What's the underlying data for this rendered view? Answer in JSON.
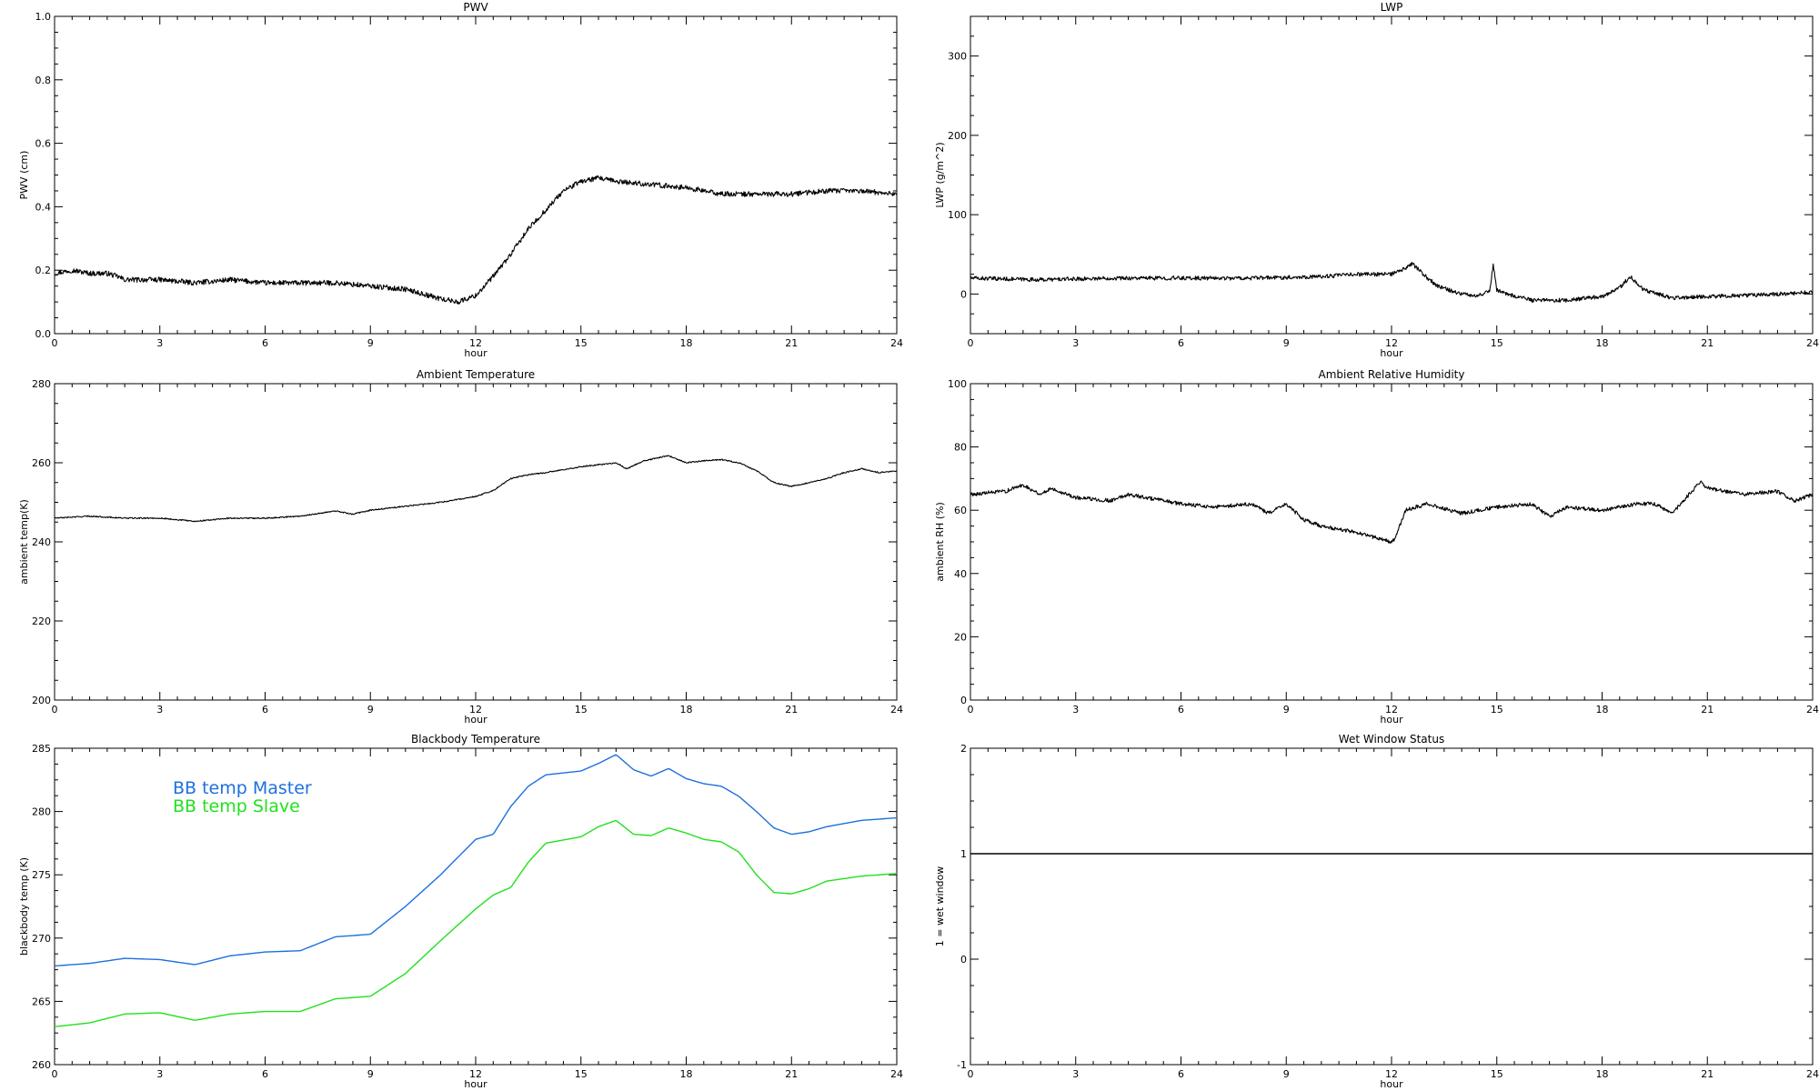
{
  "chart_data": [
    {
      "id": "pwv",
      "type": "line",
      "title": "PWV",
      "xlabel": "hour",
      "ylabel": "PWV (cm)",
      "xlim": [
        0,
        24
      ],
      "ylim": [
        0,
        1
      ],
      "xticks": [
        0,
        3,
        6,
        9,
        12,
        15,
        18,
        21,
        24
      ],
      "xtick_labels": [
        "0",
        "3",
        "6",
        "9",
        "12",
        "15",
        "18",
        "21",
        "24"
      ],
      "yticks": [
        0,
        0.2,
        0.4,
        0.6,
        0.8,
        1
      ],
      "ytick_labels": [
        "0.0",
        "0.2",
        "0.4",
        "0.6",
        "0.8",
        "1.0"
      ],
      "series": [
        {
          "color": "#000000",
          "noise": 0.008,
          "x": [
            0,
            0.5,
            1,
            1.5,
            1.8,
            2,
            3,
            4,
            5,
            6,
            7,
            8,
            9,
            10,
            11,
            11.5,
            12,
            12.5,
            13,
            13.5,
            14,
            14.5,
            15,
            15.5,
            16,
            17,
            18,
            19,
            20,
            21,
            22,
            23,
            24
          ],
          "y": [
            0.19,
            0.2,
            0.19,
            0.19,
            0.18,
            0.17,
            0.17,
            0.16,
            0.17,
            0.16,
            0.16,
            0.16,
            0.15,
            0.14,
            0.11,
            0.1,
            0.12,
            0.18,
            0.25,
            0.33,
            0.39,
            0.45,
            0.48,
            0.49,
            0.48,
            0.47,
            0.46,
            0.44,
            0.44,
            0.44,
            0.45,
            0.45,
            0.44
          ]
        }
      ]
    },
    {
      "id": "lwp",
      "type": "line",
      "title": "LWP",
      "xlabel": "hour",
      "ylabel": "LWP (g/m^2)",
      "xlim": [
        0,
        24
      ],
      "ylim": [
        -50,
        350
      ],
      "xticks": [
        0,
        3,
        6,
        9,
        12,
        15,
        18,
        21,
        24
      ],
      "xtick_labels": [
        "0",
        "3",
        "6",
        "9",
        "12",
        "15",
        "18",
        "21",
        "24"
      ],
      "yticks": [
        0,
        100,
        200,
        300
      ],
      "ytick_labels": [
        "0",
        "100",
        "200",
        "300"
      ],
      "series": [
        {
          "color": "#000000",
          "noise": 2.5,
          "x": [
            0,
            2,
            4,
            6,
            8,
            10,
            11,
            12,
            12.3,
            12.6,
            12.9,
            13.3,
            14,
            14.5,
            14.8,
            14.9,
            15.0,
            15.3,
            16,
            17,
            18,
            18.5,
            18.8,
            19.2,
            20,
            21,
            22,
            23,
            24
          ],
          "y": [
            20,
            18,
            20,
            20,
            20,
            22,
            25,
            25,
            30,
            38,
            25,
            10,
            0,
            -2,
            5,
            38,
            5,
            0,
            -8,
            -8,
            -3,
            8,
            22,
            5,
            -5,
            -3,
            -2,
            0,
            2
          ]
        }
      ]
    },
    {
      "id": "ambient-temperature",
      "type": "line",
      "title": "Ambient Temperature",
      "xlabel": "hour",
      "ylabel": "ambient temp(K)",
      "xlim": [
        0,
        24
      ],
      "ylim": [
        200,
        280
      ],
      "xticks": [
        0,
        3,
        6,
        9,
        12,
        15,
        18,
        21,
        24
      ],
      "xtick_labels": [
        "0",
        "3",
        "6",
        "9",
        "12",
        "15",
        "18",
        "21",
        "24"
      ],
      "yticks": [
        200,
        220,
        240,
        260,
        280
      ],
      "ytick_labels": [
        "200",
        "220",
        "240",
        "260",
        "280"
      ],
      "series": [
        {
          "color": "#000000",
          "noise": 0.15,
          "x": [
            0,
            1,
            2,
            3,
            4,
            5,
            6,
            7,
            8,
            8.5,
            9,
            10,
            11,
            12,
            12.5,
            13,
            13.5,
            14,
            15,
            16,
            16.3,
            16.8,
            17.5,
            18,
            18.5,
            19,
            19.5,
            20,
            20.5,
            21,
            21.5,
            22,
            22.5,
            23,
            23.5,
            24
          ],
          "y": [
            246,
            246.5,
            246,
            246,
            245.2,
            246,
            246,
            246.5,
            247.8,
            247,
            248,
            249,
            250,
            251.5,
            253,
            256,
            257,
            257.5,
            259,
            260,
            258.5,
            260.5,
            261.8,
            260,
            260.5,
            260.8,
            260,
            258,
            255,
            254,
            255,
            256,
            257.5,
            258.5,
            257.5,
            258
          ]
        }
      ]
    },
    {
      "id": "ambient-relative-humidity",
      "type": "line",
      "title": "Ambient Relative Humidity",
      "xlabel": "hour",
      "ylabel": "ambient RH (%)",
      "xlim": [
        0,
        24
      ],
      "ylim": [
        0,
        100
      ],
      "xticks": [
        0,
        3,
        6,
        9,
        12,
        15,
        18,
        21,
        24
      ],
      "xtick_labels": [
        "0",
        "3",
        "6",
        "9",
        "12",
        "15",
        "18",
        "21",
        "24"
      ],
      "yticks": [
        0,
        20,
        40,
        60,
        80,
        100
      ],
      "ytick_labels": [
        "0",
        "20",
        "40",
        "60",
        "80",
        "100"
      ],
      "series": [
        {
          "color": "#000000",
          "noise": 0.6,
          "x": [
            0,
            1,
            1.5,
            2,
            2.3,
            3,
            4,
            4.5,
            5,
            6,
            7,
            8,
            8.5,
            9,
            9.5,
            10,
            11,
            12,
            12.1,
            12.4,
            13,
            14,
            15,
            16,
            16.5,
            17,
            18,
            19,
            19.5,
            20,
            20.4,
            20.8,
            21,
            22,
            23,
            23.5,
            24
          ],
          "y": [
            65,
            66,
            68,
            65,
            67,
            64,
            63,
            65,
            64,
            62,
            61,
            62,
            59,
            62,
            57,
            55,
            53,
            50,
            51,
            60,
            62,
            59,
            61,
            62,
            58,
            61,
            60,
            62,
            62,
            59,
            64,
            69,
            67,
            65,
            66,
            63,
            65
          ]
        }
      ]
    },
    {
      "id": "blackbody-temperature",
      "type": "line",
      "title": "Blackbody Temperature",
      "xlabel": "hour",
      "ylabel": "blackbody temp (K)",
      "xlim": [
        0,
        24
      ],
      "ylim": [
        260,
        285
      ],
      "xticks": [
        0,
        3,
        6,
        9,
        12,
        15,
        18,
        21,
        24
      ],
      "xtick_labels": [
        "0",
        "3",
        "6",
        "9",
        "12",
        "15",
        "18",
        "21",
        "24"
      ],
      "yticks": [
        260,
        265,
        270,
        275,
        280,
        285
      ],
      "ytick_labels": [
        "260",
        "265",
        "270",
        "275",
        "280",
        "285"
      ],
      "legend": [
        "BB temp Master",
        "BB temp Slave"
      ],
      "series": [
        {
          "name": "BB temp Master",
          "color": "#1e6fe0",
          "noise": 0,
          "x": [
            0,
            1,
            2,
            3,
            4,
            5,
            6,
            7,
            8,
            9,
            10,
            11,
            12,
            12.5,
            13,
            13.5,
            14,
            15,
            15.5,
            16,
            16.5,
            17,
            17.5,
            18,
            18.5,
            19,
            19.5,
            20,
            20.5,
            21,
            21.5,
            22,
            23,
            24
          ],
          "y": [
            267.8,
            268,
            268.4,
            268.3,
            267.9,
            268.6,
            268.9,
            269,
            270.1,
            270.3,
            272.5,
            275,
            277.8,
            278.2,
            280.4,
            282,
            282.9,
            283.2,
            283.8,
            284.5,
            283.3,
            282.8,
            283.4,
            282.6,
            282.2,
            282,
            281.2,
            280,
            278.7,
            278.2,
            278.4,
            278.8,
            279.3,
            279.5
          ]
        },
        {
          "name": "BB temp Slave",
          "color": "#22e01e",
          "noise": 0,
          "x": [
            0,
            1,
            2,
            3,
            4,
            5,
            6,
            7,
            8,
            9,
            10,
            11,
            12,
            12.5,
            13,
            13.5,
            14,
            15,
            15.5,
            16,
            16.5,
            17,
            17.5,
            18,
            18.5,
            19,
            19.5,
            20,
            20.5,
            21,
            21.5,
            22,
            23,
            24
          ],
          "y": [
            263,
            263.3,
            264,
            264.1,
            263.5,
            264,
            264.2,
            264.2,
            265.2,
            265.4,
            267.2,
            269.8,
            272.3,
            273.4,
            274,
            276,
            277.5,
            278,
            278.8,
            279.3,
            278.2,
            278.1,
            278.7,
            278.3,
            277.8,
            277.6,
            276.8,
            275,
            273.6,
            273.5,
            273.9,
            274.5,
            274.9,
            275.1
          ]
        }
      ]
    },
    {
      "id": "wet-window-status",
      "type": "line",
      "title": "Wet Window Status",
      "xlabel": "hour",
      "ylabel": "1 = wet window",
      "xlim": [
        0,
        24
      ],
      "ylim": [
        -1,
        2
      ],
      "xticks": [
        0,
        3,
        6,
        9,
        12,
        15,
        18,
        21,
        24
      ],
      "xtick_labels": [
        "0",
        "3",
        "6",
        "9",
        "12",
        "15",
        "18",
        "21",
        "24"
      ],
      "yticks": [
        -1,
        0,
        1,
        2
      ],
      "ytick_labels": [
        "-1",
        "0",
        "1",
        "2"
      ],
      "series": [
        {
          "color": "#000000",
          "noise": 0,
          "x": [
            0,
            24
          ],
          "y": [
            1,
            1
          ]
        }
      ]
    }
  ]
}
